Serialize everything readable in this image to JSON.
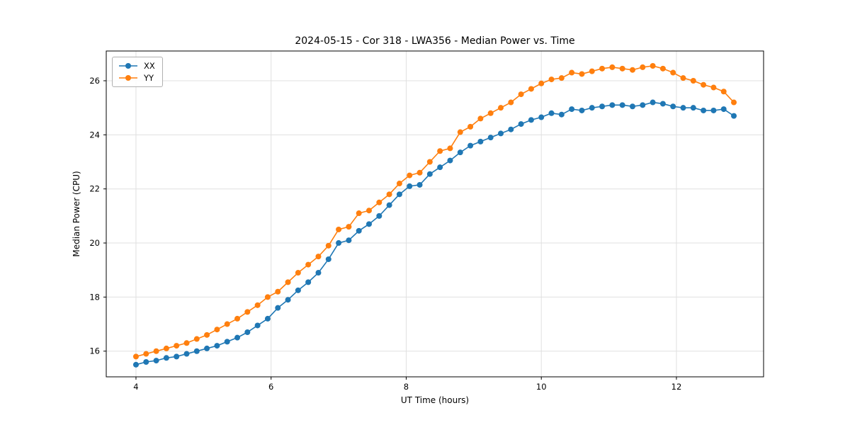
{
  "chart_data": {
    "type": "line",
    "title": "2024-05-15 - Cor 318 - LWA356 - Median Power vs. Time",
    "xlabel": "UT Time (hours)",
    "ylabel": "Median Power (CPU)",
    "xlim": [
      3.56,
      13.29
    ],
    "ylim": [
      15.05,
      27.1
    ],
    "xticks": [
      4,
      6,
      8,
      10,
      12
    ],
    "yticks": [
      16,
      18,
      20,
      22,
      24,
      26
    ],
    "grid": true,
    "grid_color": "#e0e0e0",
    "axis_color": "#000000",
    "legend_position": "upper left",
    "x": [
      4.0,
      4.15,
      4.3,
      4.45,
      4.6,
      4.75,
      4.9,
      5.05,
      5.2,
      5.35,
      5.5,
      5.65,
      5.8,
      5.95,
      6.1,
      6.25,
      6.4,
      6.55,
      6.7,
      6.85,
      7.0,
      7.15,
      7.3,
      7.45,
      7.6,
      7.75,
      7.9,
      8.05,
      8.2,
      8.35,
      8.5,
      8.65,
      8.8,
      8.95,
      9.1,
      9.25,
      9.4,
      9.55,
      9.7,
      9.85,
      10.0,
      10.15,
      10.3,
      10.45,
      10.6,
      10.75,
      10.9,
      11.05,
      11.2,
      11.35,
      11.5,
      11.65,
      11.8,
      11.95,
      12.1,
      12.25,
      12.4,
      12.55,
      12.7,
      12.85
    ],
    "series": [
      {
        "name": "XX",
        "color": "#1f77b4",
        "marker": "circle",
        "values": [
          15.5,
          15.6,
          15.65,
          15.75,
          15.8,
          15.9,
          16.0,
          16.1,
          16.2,
          16.35,
          16.5,
          16.7,
          16.95,
          17.2,
          17.6,
          17.9,
          18.25,
          18.55,
          18.9,
          19.4,
          20.0,
          20.1,
          20.45,
          20.7,
          21.0,
          21.4,
          21.8,
          22.1,
          22.15,
          22.55,
          22.8,
          23.05,
          23.35,
          23.6,
          23.75,
          23.9,
          24.05,
          24.2,
          24.4,
          24.55,
          24.65,
          24.8,
          24.75,
          24.95,
          24.9,
          25.0,
          25.05,
          25.1,
          25.1,
          25.05,
          25.1,
          25.2,
          25.15,
          25.05,
          25.0,
          25.0,
          24.9,
          24.9,
          24.95,
          24.7
        ]
      },
      {
        "name": "YY",
        "color": "#ff7f0e",
        "marker": "circle",
        "values": [
          15.8,
          15.9,
          16.0,
          16.1,
          16.2,
          16.3,
          16.45,
          16.6,
          16.8,
          17.0,
          17.2,
          17.45,
          17.7,
          18.0,
          18.2,
          18.55,
          18.9,
          19.2,
          19.5,
          19.9,
          20.5,
          20.6,
          21.1,
          21.2,
          21.5,
          21.8,
          22.2,
          22.5,
          22.6,
          23.0,
          23.4,
          23.5,
          24.1,
          24.3,
          24.6,
          24.8,
          25.0,
          25.2,
          25.5,
          25.7,
          25.9,
          26.05,
          26.1,
          26.3,
          26.25,
          26.35,
          26.45,
          26.5,
          26.45,
          26.4,
          26.5,
          26.55,
          26.45,
          26.3,
          26.1,
          26.0,
          25.85,
          25.75,
          25.6,
          25.2
        ]
      }
    ]
  }
}
